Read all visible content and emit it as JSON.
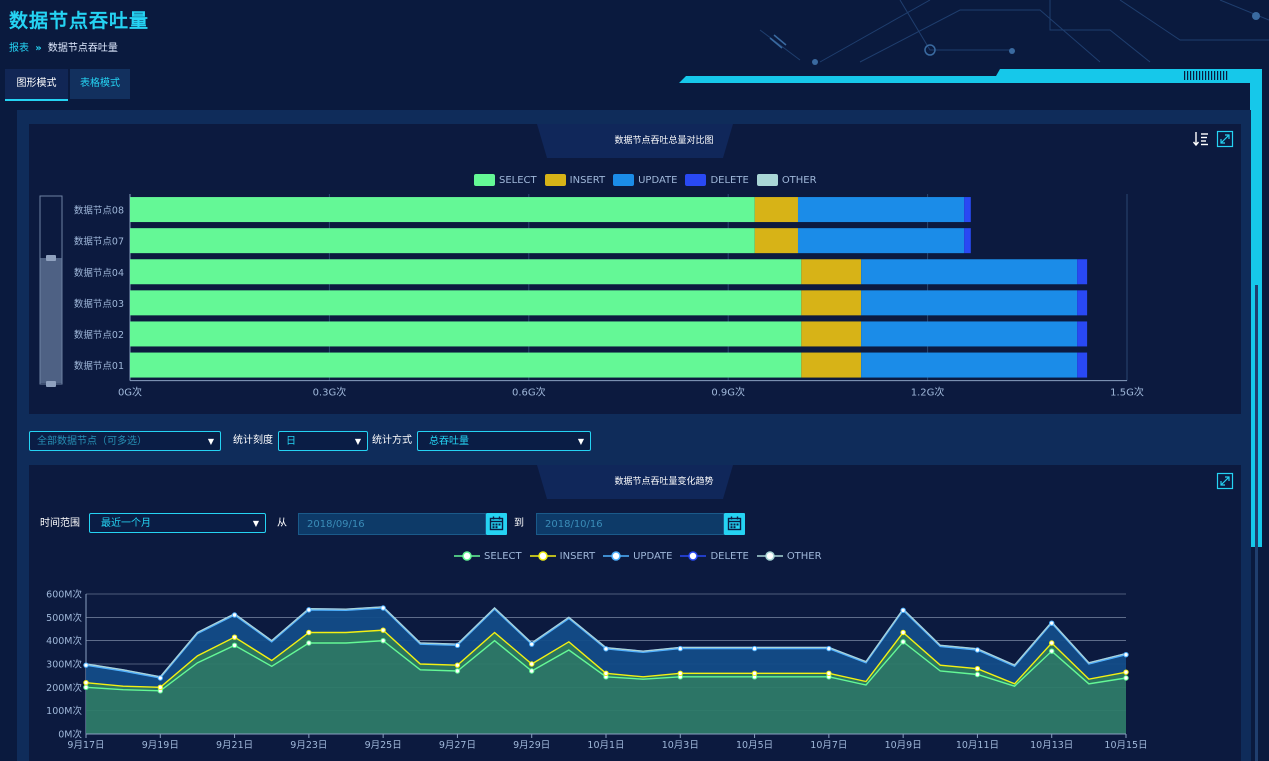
{
  "page": {
    "title": "数据节点吞吐量"
  },
  "breadcrumb": {
    "parent": "报表",
    "separator": "»",
    "current": "数据节点吞吐量"
  },
  "tabs": {
    "graph": "图形模式",
    "table": "表格模式"
  },
  "colors": {
    "accent": "#25d3f3",
    "select": "#64f896",
    "insert": "#d7b317",
    "update": "#1b8ce8",
    "delete": "#2949f4",
    "other": "#a9d6d6"
  },
  "filters": {
    "nodes_placeholder": "全部数据节点（可多选）",
    "granularity_label": "统计刻度",
    "granularity_value": "日",
    "method_label": "统计方式",
    "method_value": "总吞吐量"
  },
  "range": {
    "label": "时间范围",
    "preset": "最近一个月",
    "from_label": "从",
    "from_date": "2018/09/16",
    "to_label": "到",
    "to_date": "2018/10/16"
  },
  "chart_data": [
    {
      "type": "bar",
      "orientation": "horizontal",
      "stacked": true,
      "title": "数据节点吞吐总量对比图",
      "categories": [
        "数据节点08",
        "数据节点07",
        "数据节点04",
        "数据节点03",
        "数据节点02",
        "数据节点01"
      ],
      "series": [
        {
          "name": "SELECT",
          "values": [
            0.94,
            0.94,
            1.01,
            1.01,
            1.01,
            1.01
          ]
        },
        {
          "name": "INSERT",
          "values": [
            0.065,
            0.065,
            0.09,
            0.09,
            0.09,
            0.09
          ]
        },
        {
          "name": "UPDATE",
          "values": [
            0.25,
            0.25,
            0.325,
            0.325,
            0.325,
            0.325
          ]
        },
        {
          "name": "DELETE",
          "values": [
            0.01,
            0.01,
            0.015,
            0.015,
            0.015,
            0.015
          ]
        },
        {
          "name": "OTHER",
          "values": [
            0,
            0,
            0,
            0,
            0,
            0
          ]
        }
      ],
      "xlim": [
        0,
        1.5
      ],
      "xticks": [
        "0G次",
        "0.3G次",
        "0.6G次",
        "0.9G次",
        "1.2G次",
        "1.5G次"
      ],
      "legend": "top-center",
      "grid": true
    },
    {
      "type": "area",
      "stacked": true,
      "title": "数据节点吞吐量变化趋势",
      "x": [
        "9月17日",
        "9月18日",
        "9月19日",
        "9月20日",
        "9月21日",
        "9月22日",
        "9月23日",
        "9月24日",
        "9月25日",
        "9月26日",
        "9月27日",
        "9月28日",
        "9月29日",
        "9月30日",
        "10月1日",
        "10月2日",
        "10月3日",
        "10月4日",
        "10月5日",
        "10月6日",
        "10月7日",
        "10月8日",
        "10月9日",
        "10月10日",
        "10月11日",
        "10月12日",
        "10月13日",
        "10月14日",
        "10月15日"
      ],
      "xticks": [
        "9月17日",
        "9月19日",
        "9月21日",
        "9月23日",
        "9月25日",
        "9月27日",
        "9月29日",
        "10月1日",
        "10月3日",
        "10月5日",
        "10月7日",
        "10月9日",
        "10月11日",
        "10月13日",
        "10月15日"
      ],
      "series": [
        {
          "name": "SELECT",
          "values": [
            200,
            190,
            185,
            305,
            380,
            290,
            390,
            390,
            400,
            275,
            270,
            400,
            270,
            360,
            245,
            235,
            245,
            245,
            245,
            245,
            245,
            210,
            395,
            270,
            255,
            205,
            355,
            215,
            240
          ]
        },
        {
          "name": "INSERT",
          "values": [
            20,
            15,
            15,
            30,
            35,
            25,
            45,
            45,
            45,
            25,
            25,
            35,
            30,
            35,
            15,
            10,
            15,
            15,
            15,
            15,
            15,
            15,
            40,
            25,
            25,
            10,
            35,
            20,
            25
          ]
        },
        {
          "name": "UPDATE",
          "values": [
            75,
            65,
            40,
            95,
            95,
            80,
            97,
            95,
            95,
            85,
            85,
            100,
            85,
            100,
            105,
            105,
            106,
            106,
            106,
            106,
            106,
            80,
            95,
            80,
            80,
            75,
            85,
            65,
            75
          ]
        },
        {
          "name": "DELETE",
          "values": [
            5,
            5,
            5,
            5,
            5,
            5,
            5,
            5,
            5,
            5,
            5,
            5,
            5,
            5,
            5,
            5,
            5,
            5,
            5,
            5,
            5,
            5,
            5,
            5,
            5,
            5,
            5,
            5,
            5
          ]
        },
        {
          "name": "OTHER",
          "values": [
            0,
            0,
            0,
            0,
            0,
            0,
            0,
            0,
            0,
            0,
            0,
            0,
            0,
            0,
            0,
            0,
            0,
            0,
            0,
            0,
            0,
            0,
            0,
            0,
            0,
            0,
            0,
            0,
            0
          ]
        }
      ],
      "ylim": [
        0,
        600
      ],
      "yticks": [
        "0M次",
        "100M次",
        "200M次",
        "300M次",
        "400M次",
        "500M次",
        "600M次"
      ],
      "legend": "top-center",
      "grid": true
    }
  ]
}
